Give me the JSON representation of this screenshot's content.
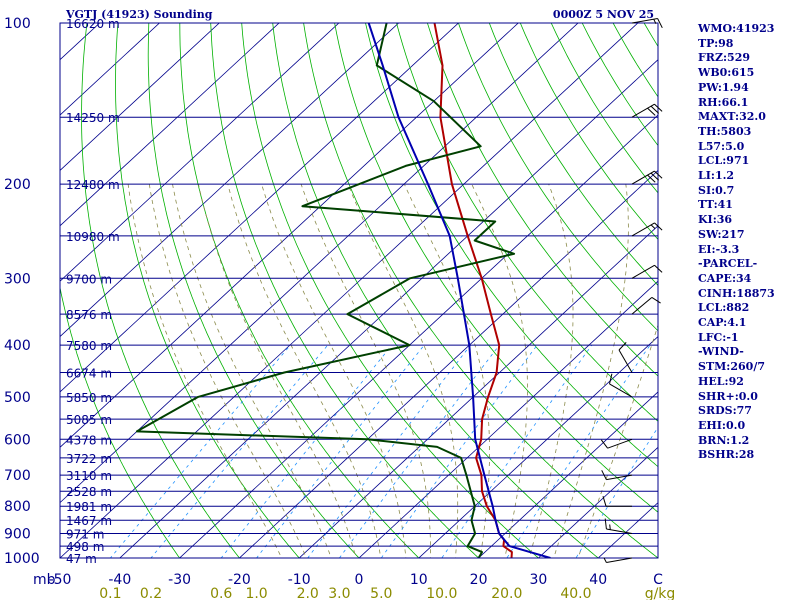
{
  "header": {
    "title": "VGTJ (41923) Sounding",
    "datetime": "0000Z  5 NOV 25"
  },
  "indices": [
    "WMO:41923",
    "TP:98",
    "FRZ:529",
    "WB0:615",
    "PW:1.94",
    "RH:66.1",
    "MAXT:32.0",
    "TH:5803",
    "L57:5.0",
    "LCL:971",
    "LI:1.2",
    "SI:0.7",
    "TT:41",
    "KI:36",
    "SW:217",
    "EI:-3.3",
    "-PARCEL-",
    "CAPE:34",
    "CINH:18873",
    "LCL:882",
    "CAP:4.1",
    "LFC:-1",
    "-WIND-",
    "STM:260/7",
    "HEL:92",
    "SHR+:0.0",
    "SRDS:77",
    "EHI:0.0",
    "BRN:1.2",
    "BSHR:28"
  ],
  "chart_data": {
    "type": "line",
    "subtype": "skew-T log-P sounding",
    "y_axis_unit": "mb",
    "y_scale": "log",
    "ylim": [
      1000,
      100
    ],
    "xlim": [
      -50,
      50
    ],
    "pressure_labels": [
      100,
      200,
      300,
      400,
      500,
      600,
      700,
      800,
      900,
      1000
    ],
    "temperature_ticks": [
      -50,
      -40,
      -30,
      -20,
      -10,
      0,
      10,
      20,
      30,
      40
    ],
    "temperature_tick_labels": [
      "-50",
      "-40",
      "-30",
      "-20",
      "-10",
      "0",
      "10",
      "20",
      "30",
      "40",
      "C"
    ],
    "mixing_ratio_ticks": [
      0.1,
      0.2,
      0.6,
      1.0,
      2.0,
      3.0,
      5.0,
      10.0,
      20.0,
      40.0
    ],
    "mixing_ratio_tick_labels": [
      "0.1",
      "0.2",
      "0.6",
      "1.0",
      "2.0",
      "3.0",
      "5.0",
      "10.0",
      "20.0",
      "40.0",
      "g/kg"
    ],
    "height_levels": [
      {
        "p": 100,
        "label": "16620 m"
      },
      {
        "p": 150,
        "label": "14250 m"
      },
      {
        "p": 200,
        "label": "12480 m"
      },
      {
        "p": 250,
        "label": "10980 m"
      },
      {
        "p": 300,
        "label": "9700 m"
      },
      {
        "p": 350,
        "label": "8576 m"
      },
      {
        "p": 400,
        "label": "7580 m"
      },
      {
        "p": 450,
        "label": "6674 m"
      },
      {
        "p": 500,
        "label": "5850 m"
      },
      {
        "p": 550,
        "label": "5085 m"
      },
      {
        "p": 600,
        "label": "4378 m"
      },
      {
        "p": 650,
        "label": "3722 m"
      },
      {
        "p": 700,
        "label": "3110 m"
      },
      {
        "p": 750,
        "label": "2528 m"
      },
      {
        "p": 800,
        "label": "1981 m"
      },
      {
        "p": 850,
        "label": "1467 m"
      },
      {
        "p": 900,
        "label": "971 m"
      },
      {
        "p": 950,
        "label": "498 m"
      },
      {
        "p": 1000,
        "label": "47 m"
      }
    ],
    "series": [
      {
        "name": "temperature",
        "color": "#b00000",
        "points": [
          {
            "p": 1000,
            "t": 25.5
          },
          {
            "p": 975,
            "t": 24.5
          },
          {
            "p": 950,
            "t": 22.0
          },
          {
            "p": 925,
            "t": 21.0
          },
          {
            "p": 900,
            "t": 19.0
          },
          {
            "p": 850,
            "t": 16.0
          },
          {
            "p": 800,
            "t": 12.0
          },
          {
            "p": 750,
            "t": 8.5
          },
          {
            "p": 700,
            "t": 5.5
          },
          {
            "p": 650,
            "t": 1.5
          },
          {
            "p": 600,
            "t": -1.0
          },
          {
            "p": 550,
            "t": -4.5
          },
          {
            "p": 500,
            "t": -7.5
          },
          {
            "p": 450,
            "t": -10.5
          },
          {
            "p": 400,
            "t": -15.0
          },
          {
            "p": 350,
            "t": -22.0
          },
          {
            "p": 300,
            "t": -30.0
          },
          {
            "p": 250,
            "t": -40.0
          },
          {
            "p": 200,
            "t": -52.0
          },
          {
            "p": 150,
            "t": -66.0
          },
          {
            "p": 120,
            "t": -75.0
          },
          {
            "p": 100,
            "t": -84.0
          }
        ]
      },
      {
        "name": "dewpoint",
        "color": "#004000",
        "points": [
          {
            "p": 1000,
            "t": 20.0
          },
          {
            "p": 975,
            "t": 19.5
          },
          {
            "p": 950,
            "t": 16.0
          },
          {
            "p": 925,
            "t": 15.5
          },
          {
            "p": 900,
            "t": 15.0
          },
          {
            "p": 850,
            "t": 12.0
          },
          {
            "p": 800,
            "t": 10.0
          },
          {
            "p": 700,
            "t": 3.0
          },
          {
            "p": 650,
            "t": -1.0
          },
          {
            "p": 620,
            "t": -7.0
          },
          {
            "p": 600,
            "t": -20.0
          },
          {
            "p": 580,
            "t": -60.0
          },
          {
            "p": 500,
            "t": -56.0
          },
          {
            "p": 450,
            "t": -46.0
          },
          {
            "p": 400,
            "t": -30.0
          },
          {
            "p": 350,
            "t": -46.0
          },
          {
            "p": 300,
            "t": -42.0
          },
          {
            "p": 270,
            "t": -29.0
          },
          {
            "p": 255,
            "t": -38.0
          },
          {
            "p": 235,
            "t": -38.0
          },
          {
            "p": 220,
            "t": -73.0
          },
          {
            "p": 185,
            "t": -63.0
          },
          {
            "p": 170,
            "t": -54.0
          },
          {
            "p": 140,
            "t": -70.0
          },
          {
            "p": 120,
            "t": -86.0
          },
          {
            "p": 100,
            "t": -92.0
          }
        ]
      },
      {
        "name": "parcel",
        "color": "#0000b0",
        "points": [
          {
            "p": 1000,
            "t": 32.0
          },
          {
            "p": 950,
            "t": 23.0
          },
          {
            "p": 900,
            "t": 19.0
          },
          {
            "p": 850,
            "t": 16.0
          },
          {
            "p": 800,
            "t": 13.0
          },
          {
            "p": 700,
            "t": 6.0
          },
          {
            "p": 600,
            "t": -2.0
          },
          {
            "p": 500,
            "t": -10.0
          },
          {
            "p": 400,
            "t": -20.0
          },
          {
            "p": 300,
            "t": -34.0
          },
          {
            "p": 250,
            "t": -43.0
          },
          {
            "p": 200,
            "t": -56.0
          },
          {
            "p": 150,
            "t": -73.0
          },
          {
            "p": 120,
            "t": -85.0
          },
          {
            "p": 100,
            "t": -95.0
          }
        ]
      }
    ],
    "wind_profile": [
      {
        "p": 1000,
        "dir": 260,
        "spd": 5
      },
      {
        "p": 900,
        "dir": 280,
        "spd": 15
      },
      {
        "p": 800,
        "dir": 270,
        "spd": 10
      },
      {
        "p": 700,
        "dir": 260,
        "spd": 10
      },
      {
        "p": 600,
        "dir": 250,
        "spd": 10
      },
      {
        "p": 500,
        "dir": 300,
        "spd": 10
      },
      {
        "p": 450,
        "dir": 330,
        "spd": 10
      },
      {
        "p": 350,
        "dir": 50,
        "spd": 10
      },
      {
        "p": 300,
        "dir": 60,
        "spd": 10
      },
      {
        "p": 250,
        "dir": 60,
        "spd": 15
      },
      {
        "p": 200,
        "dir": 60,
        "spd": 30
      },
      {
        "p": 150,
        "dir": 60,
        "spd": 30
      },
      {
        "p": 100,
        "dir": 80,
        "spd": 15
      }
    ],
    "colors": {
      "isobar": "#00008b",
      "skew_isotherm": "#00008b",
      "dry_adiabat": "#00b000",
      "moist_adiabat": "#8b8b4b",
      "mixing_ratio": "#1e90ff",
      "frame": "#00008b"
    }
  }
}
